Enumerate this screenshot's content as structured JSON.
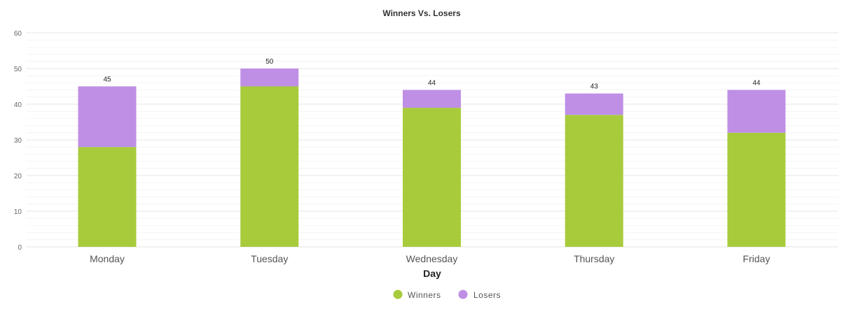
{
  "chart_data": {
    "type": "bar",
    "stacked": true,
    "title": "Winners Vs. Losers",
    "xlabel": "Day",
    "ylabel": "",
    "categories": [
      "Monday",
      "Tuesday",
      "Wednesday",
      "Thursday",
      "Friday"
    ],
    "series": [
      {
        "name": "Winners",
        "values": [
          28,
          45,
          39,
          37,
          32
        ],
        "color": "#a8cb3c"
      },
      {
        "name": "Losers",
        "values": [
          17,
          5,
          5,
          6,
          12
        ],
        "color": "#bf8fe6"
      }
    ],
    "totals": [
      "45",
      "50",
      "44",
      "43",
      "44"
    ],
    "ylim": [
      0,
      60
    ],
    "yticks": [
      "0",
      "10",
      "20",
      "30",
      "40",
      "50",
      "60"
    ],
    "grid": true,
    "legend_position": "bottom"
  }
}
